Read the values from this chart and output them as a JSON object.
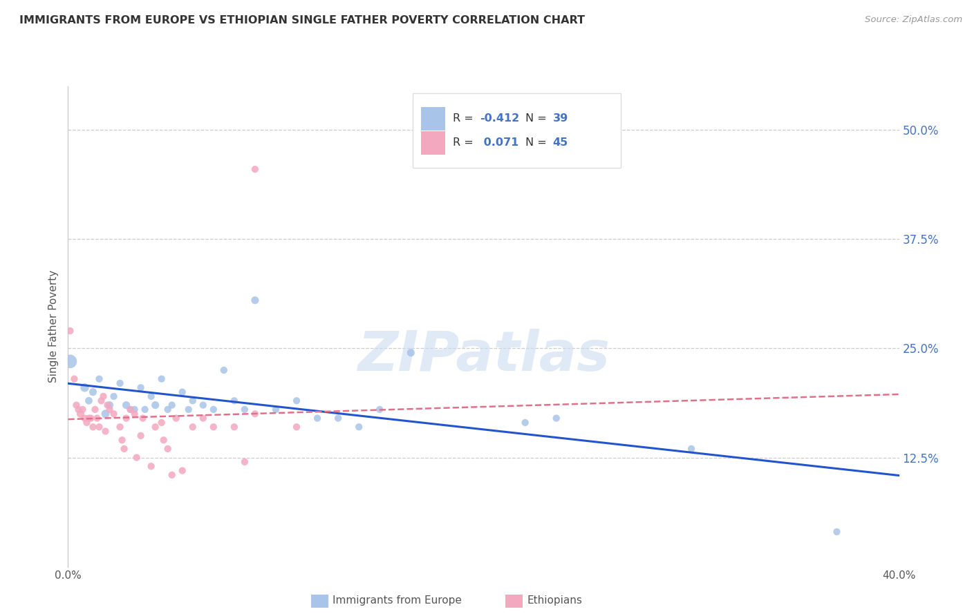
{
  "title": "IMMIGRANTS FROM EUROPE VS ETHIOPIAN SINGLE FATHER POVERTY CORRELATION CHART",
  "source": "Source: ZipAtlas.com",
  "ylabel": "Single Father Poverty",
  "ytick_labels": [
    "12.5%",
    "25.0%",
    "37.5%",
    "50.0%"
  ],
  "ytick_values": [
    0.125,
    0.25,
    0.375,
    0.5
  ],
  "xlim": [
    0.0,
    0.4
  ],
  "ylim": [
    0.0,
    0.55
  ],
  "xtick_labels": [
    "0.0%",
    "40.0%"
  ],
  "xtick_values": [
    0.0,
    0.4
  ],
  "legend_blue_label": "Immigrants from Europe",
  "legend_pink_label": "Ethiopians",
  "R_blue": -0.412,
  "N_blue": 39,
  "R_pink": 0.071,
  "N_pink": 45,
  "blue_color": "#a8c4e8",
  "pink_color": "#f4a8c0",
  "blue_line_color": "#2255cc",
  "pink_line_color": "#e07088",
  "grid_color": "#cccccc",
  "background_color": "#ffffff",
  "watermark": "ZIPatlas",
  "blue_points": [
    [
      0.001,
      0.235
    ],
    [
      0.008,
      0.205
    ],
    [
      0.01,
      0.19
    ],
    [
      0.012,
      0.2
    ],
    [
      0.015,
      0.215
    ],
    [
      0.018,
      0.175
    ],
    [
      0.02,
      0.185
    ],
    [
      0.022,
      0.195
    ],
    [
      0.025,
      0.21
    ],
    [
      0.028,
      0.185
    ],
    [
      0.03,
      0.18
    ],
    [
      0.032,
      0.18
    ],
    [
      0.035,
      0.205
    ],
    [
      0.037,
      0.18
    ],
    [
      0.04,
      0.195
    ],
    [
      0.042,
      0.185
    ],
    [
      0.045,
      0.215
    ],
    [
      0.048,
      0.18
    ],
    [
      0.05,
      0.185
    ],
    [
      0.055,
      0.2
    ],
    [
      0.058,
      0.18
    ],
    [
      0.06,
      0.19
    ],
    [
      0.065,
      0.185
    ],
    [
      0.07,
      0.18
    ],
    [
      0.075,
      0.225
    ],
    [
      0.08,
      0.19
    ],
    [
      0.085,
      0.18
    ],
    [
      0.09,
      0.305
    ],
    [
      0.1,
      0.18
    ],
    [
      0.11,
      0.19
    ],
    [
      0.12,
      0.17
    ],
    [
      0.13,
      0.17
    ],
    [
      0.14,
      0.16
    ],
    [
      0.15,
      0.18
    ],
    [
      0.165,
      0.245
    ],
    [
      0.22,
      0.165
    ],
    [
      0.235,
      0.17
    ],
    [
      0.3,
      0.135
    ],
    [
      0.37,
      0.04
    ]
  ],
  "blue_sizes": [
    200,
    80,
    60,
    65,
    55,
    75,
    65,
    55,
    55,
    65,
    55,
    55,
    55,
    55,
    55,
    65,
    55,
    55,
    55,
    55,
    55,
    55,
    55,
    55,
    55,
    55,
    55,
    65,
    55,
    55,
    55,
    55,
    55,
    55,
    65,
    55,
    55,
    55,
    55
  ],
  "pink_points": [
    [
      0.001,
      0.27
    ],
    [
      0.003,
      0.215
    ],
    [
      0.004,
      0.185
    ],
    [
      0.005,
      0.18
    ],
    [
      0.006,
      0.175
    ],
    [
      0.007,
      0.18
    ],
    [
      0.008,
      0.17
    ],
    [
      0.009,
      0.165
    ],
    [
      0.01,
      0.17
    ],
    [
      0.011,
      0.17
    ],
    [
      0.012,
      0.16
    ],
    [
      0.013,
      0.18
    ],
    [
      0.014,
      0.17
    ],
    [
      0.015,
      0.16
    ],
    [
      0.016,
      0.19
    ],
    [
      0.017,
      0.195
    ],
    [
      0.018,
      0.155
    ],
    [
      0.019,
      0.185
    ],
    [
      0.02,
      0.18
    ],
    [
      0.022,
      0.175
    ],
    [
      0.025,
      0.16
    ],
    [
      0.026,
      0.145
    ],
    [
      0.027,
      0.135
    ],
    [
      0.028,
      0.17
    ],
    [
      0.03,
      0.18
    ],
    [
      0.032,
      0.175
    ],
    [
      0.033,
      0.125
    ],
    [
      0.035,
      0.15
    ],
    [
      0.036,
      0.17
    ],
    [
      0.04,
      0.115
    ],
    [
      0.042,
      0.16
    ],
    [
      0.045,
      0.165
    ],
    [
      0.046,
      0.145
    ],
    [
      0.048,
      0.135
    ],
    [
      0.05,
      0.105
    ],
    [
      0.052,
      0.17
    ],
    [
      0.055,
      0.11
    ],
    [
      0.06,
      0.16
    ],
    [
      0.065,
      0.17
    ],
    [
      0.07,
      0.16
    ],
    [
      0.08,
      0.16
    ],
    [
      0.085,
      0.12
    ],
    [
      0.09,
      0.175
    ],
    [
      0.09,
      0.455
    ],
    [
      0.11,
      0.16
    ]
  ],
  "pink_sizes": [
    55,
    55,
    55,
    55,
    65,
    55,
    55,
    55,
    55,
    55,
    55,
    55,
    55,
    55,
    55,
    55,
    55,
    55,
    55,
    55,
    55,
    55,
    55,
    55,
    55,
    55,
    55,
    55,
    55,
    55,
    55,
    55,
    55,
    55,
    55,
    55,
    55,
    55,
    55,
    55,
    55,
    55,
    55,
    55,
    55
  ]
}
